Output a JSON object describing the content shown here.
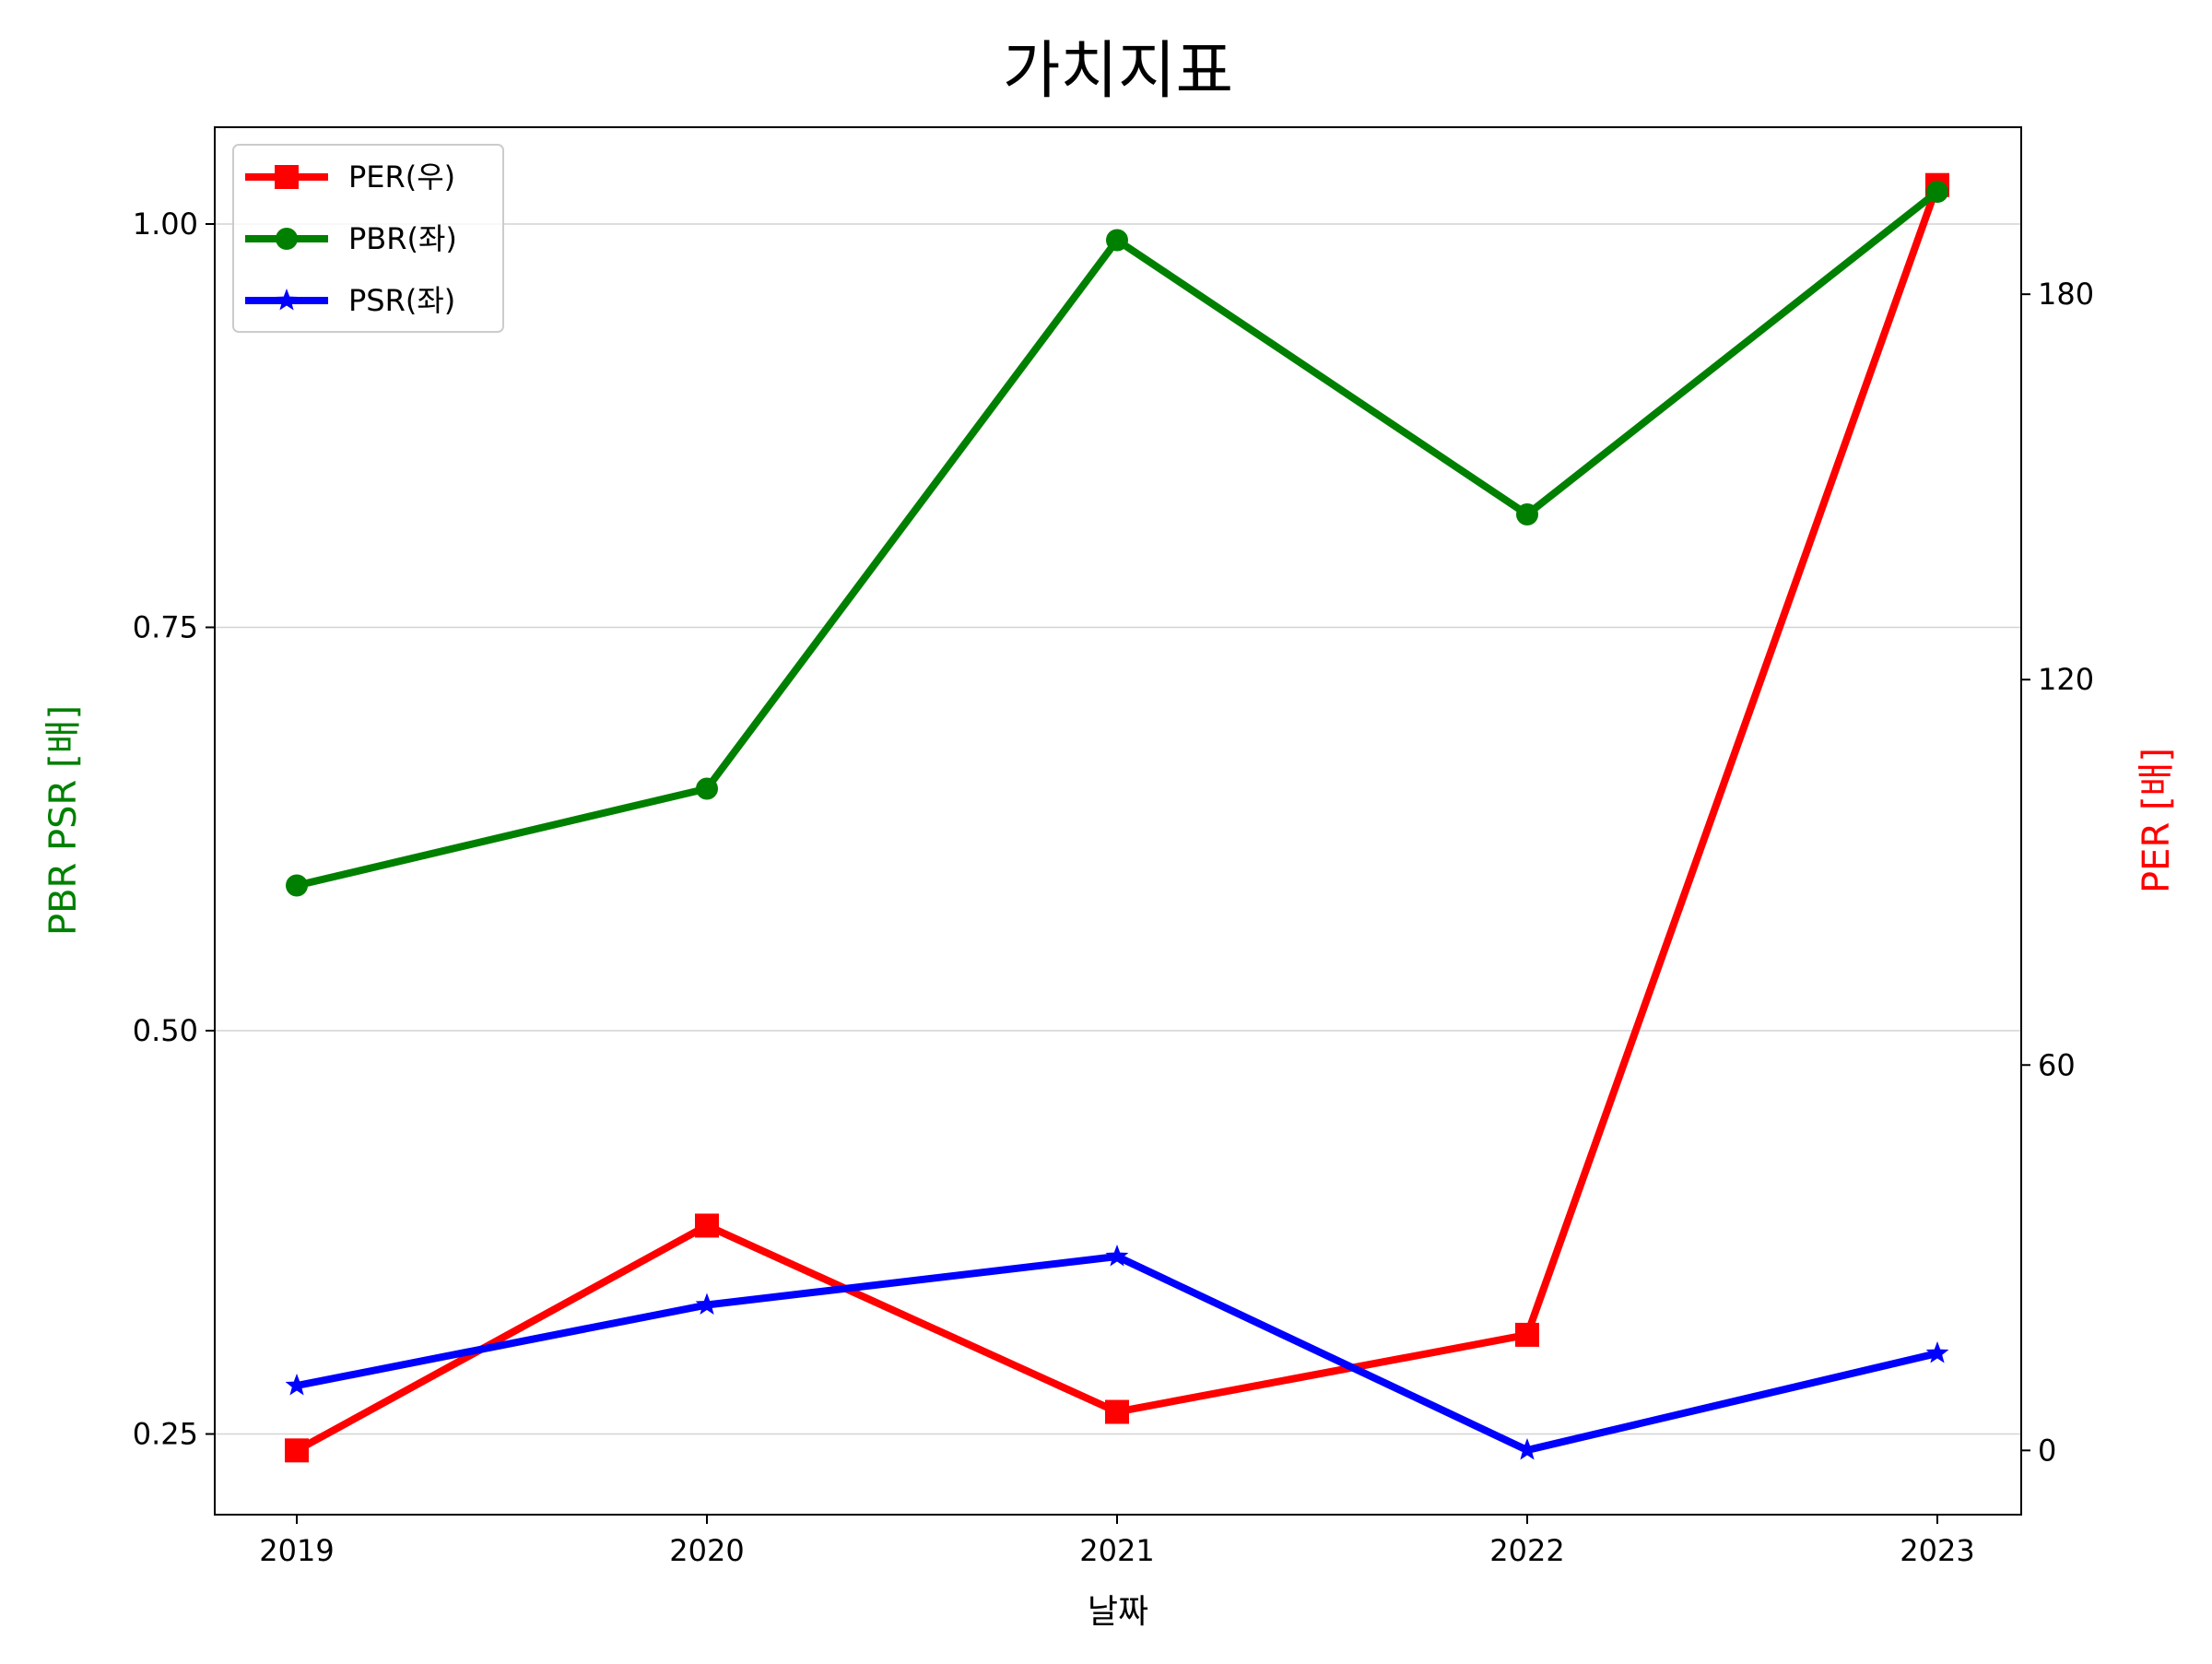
{
  "chart_data": {
    "type": "line",
    "title": "가치지표",
    "xlabel": "날짜",
    "ylabel_left": "PBR PSR [배]",
    "ylabel_right": "PER [배]",
    "categories": [
      "2019",
      "2020",
      "2021",
      "2022",
      "2023"
    ],
    "ylim_left": [
      0.2,
      1.06
    ],
    "ylim_right": [
      -10,
      206
    ],
    "yticks_left": [
      "0.25",
      "0.50",
      "0.75",
      "1.00"
    ],
    "yticks_right": [
      "0",
      "60",
      "120",
      "180"
    ],
    "grid": true,
    "legend_position": "top-left",
    "series": [
      {
        "name": "PER(우)",
        "axis": "right",
        "color": "#ff0000",
        "marker": "square",
        "values": [
          0,
          35,
          6,
          18,
          197
        ]
      },
      {
        "name": "PBR(좌)",
        "axis": "left",
        "color": "#008000",
        "marker": "circle",
        "values": [
          0.59,
          0.65,
          0.99,
          0.82,
          1.02
        ]
      },
      {
        "name": "PSR(좌)",
        "axis": "left",
        "color": "#0000ff",
        "marker": "star",
        "values": [
          0.28,
          0.33,
          0.36,
          0.24,
          0.3
        ]
      }
    ]
  }
}
